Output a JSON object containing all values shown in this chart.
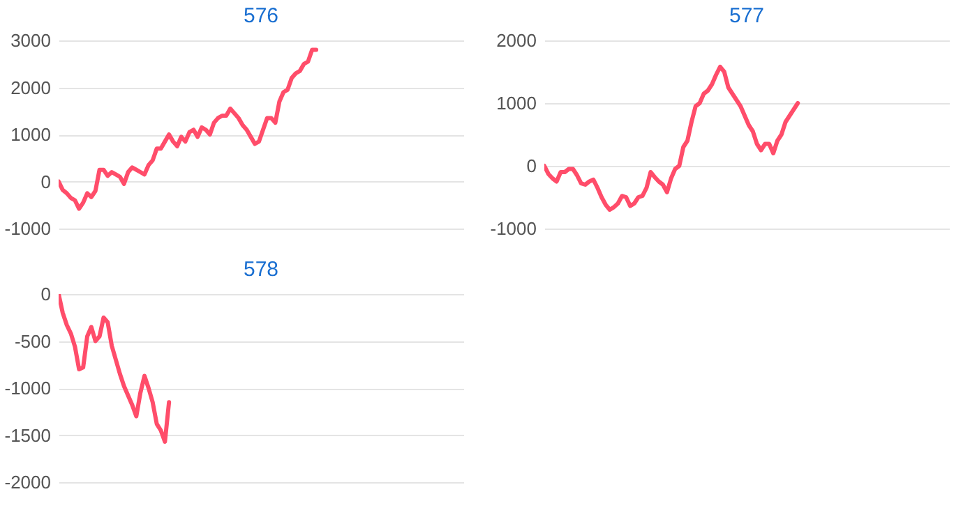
{
  "chart_data": [
    {
      "type": "line",
      "title": "576",
      "categories": [
        null,
        null,
        null,
        null,
        null,
        null,
        null,
        null,
        null,
        null,
        null,
        null,
        null,
        null,
        null,
        null,
        null,
        null,
        null,
        null,
        null,
        null,
        null,
        null,
        null,
        null,
        null,
        null,
        null,
        null,
        null,
        null,
        null,
        null,
        null,
        null,
        null,
        null,
        null,
        null,
        null,
        null,
        null,
        null,
        null,
        null,
        null,
        null,
        null,
        null,
        null,
        null,
        null,
        null,
        null,
        null,
        null,
        null,
        null,
        null,
        null,
        null,
        null,
        null,
        null,
        null,
        null,
        null,
        null,
        null,
        null,
        null,
        null,
        null,
        null,
        null,
        null,
        null,
        null,
        null,
        null,
        null,
        null,
        null,
        null,
        null,
        null,
        null,
        null,
        null,
        null,
        null,
        null,
        null,
        null,
        null,
        null,
        null,
        null,
        null
      ],
      "series": [
        {
          "color": "#ff4d6a",
          "values": [
            0,
            -180,
            -250,
            -350,
            -400,
            -580,
            -450,
            -250,
            -330,
            -200,
            250,
            250,
            120,
            200,
            150,
            100,
            -50,
            200,
            300,
            250,
            200,
            150,
            350,
            450,
            700,
            700,
            850,
            1000,
            850,
            750,
            950,
            850,
            1050,
            1100,
            950,
            1150,
            1100,
            1000,
            1250,
            1350,
            1400,
            1400,
            1550,
            1450,
            1350,
            1200,
            1100,
            950,
            800,
            850,
            1100,
            1350,
            1350,
            1250,
            1700,
            1900,
            1950,
            2200,
            2300,
            2350,
            2500,
            2550,
            2800,
            2800,
            null,
            null,
            null,
            null,
            null,
            null,
            null,
            null,
            null,
            null,
            null,
            null,
            null,
            null,
            null,
            null,
            null,
            null,
            null,
            null,
            null,
            null,
            null,
            null,
            null,
            null,
            null,
            null,
            null,
            null,
            null,
            null,
            null,
            null,
            null,
            null
          ]
        }
      ],
      "ylim": [
        -1000,
        3000
      ],
      "yticks": [
        -1000,
        0,
        1000,
        2000,
        3000
      ],
      "grid": "y",
      "tick_labels": "y"
    },
    {
      "type": "line",
      "title": "577",
      "categories": [
        null,
        null,
        null,
        null,
        null,
        null,
        null,
        null,
        null,
        null,
        null,
        null,
        null,
        null,
        null,
        null,
        null,
        null,
        null,
        null,
        null,
        null,
        null,
        null,
        null,
        null,
        null,
        null,
        null,
        null,
        null,
        null,
        null,
        null,
        null,
        null,
        null,
        null,
        null,
        null,
        null,
        null,
        null,
        null,
        null,
        null,
        null,
        null,
        null,
        null,
        null,
        null,
        null,
        null,
        null,
        null,
        null,
        null,
        null,
        null,
        null,
        null,
        null,
        null,
        null,
        null,
        null,
        null,
        null,
        null,
        null,
        null,
        null,
        null,
        null,
        null,
        null,
        null,
        null,
        null,
        null,
        null,
        null,
        null,
        null,
        null,
        null,
        null,
        null,
        null,
        null,
        null,
        null,
        null,
        null,
        null,
        null,
        null,
        null,
        null
      ],
      "series": [
        {
          "color": "#ff4d6a",
          "values": [
            0,
            -130,
            -200,
            -250,
            -100,
            -100,
            -50,
            -50,
            -150,
            -280,
            -300,
            -250,
            -220,
            -350,
            -500,
            -620,
            -700,
            -660,
            -600,
            -480,
            -500,
            -640,
            -600,
            -500,
            -480,
            -350,
            -100,
            -180,
            -250,
            -300,
            -420,
            -200,
            -50,
            0,
            300,
            400,
            700,
            950,
            1000,
            1150,
            1200,
            1300,
            1450,
            1580,
            1500,
            1250,
            1150,
            1050,
            950,
            800,
            650,
            550,
            350,
            250,
            350,
            350,
            200,
            400,
            500,
            700,
            800,
            900,
            1000,
            null,
            null,
            null,
            null,
            null,
            null,
            null,
            null,
            null,
            null,
            null,
            null,
            null,
            null,
            null,
            null,
            null,
            null,
            null,
            null,
            null,
            null,
            null,
            null,
            null,
            null,
            null,
            null,
            null,
            null,
            null,
            null,
            null,
            null,
            null,
            null,
            null
          ]
        }
      ],
      "ylim": [
        -1000,
        2000
      ],
      "yticks": [
        -1000,
        0,
        1000,
        2000
      ],
      "grid": "y",
      "tick_labels": "y"
    },
    {
      "type": "line",
      "title": "578",
      "categories": [
        null,
        null,
        null,
        null,
        null,
        null,
        null,
        null,
        null,
        null,
        null,
        null,
        null,
        null,
        null,
        null,
        null,
        null,
        null,
        null,
        null,
        null,
        null,
        null,
        null,
        null,
        null,
        null,
        null,
        null,
        null,
        null,
        null,
        null,
        null,
        null,
        null,
        null,
        null,
        null,
        null,
        null,
        null,
        null,
        null,
        null,
        null,
        null,
        null,
        null,
        null,
        null,
        null,
        null,
        null,
        null,
        null,
        null,
        null,
        null,
        null,
        null,
        null,
        null,
        null,
        null,
        null,
        null,
        null,
        null,
        null,
        null,
        null,
        null,
        null,
        null,
        null,
        null,
        null,
        null,
        null,
        null,
        null,
        null,
        null,
        null,
        null,
        null,
        null,
        null,
        null,
        null,
        null,
        null,
        null,
        null,
        null,
        null,
        null,
        null
      ],
      "series": [
        {
          "color": "#ff4d6a",
          "values": [
            0,
            -200,
            -330,
            -420,
            -560,
            -800,
            -780,
            -450,
            -350,
            -500,
            -450,
            -250,
            -300,
            -550,
            -700,
            -850,
            -980,
            -1080,
            -1180,
            -1300,
            -1050,
            -870,
            -1000,
            -1150,
            -1380,
            -1450,
            -1570,
            -1150,
            null,
            null,
            null,
            null,
            null,
            null,
            null,
            null,
            null,
            null,
            null,
            null,
            null,
            null,
            null,
            null,
            null,
            null,
            null,
            null,
            null,
            null,
            null,
            null,
            null,
            null,
            null,
            null,
            null,
            null,
            null,
            null,
            null,
            null,
            null,
            null,
            null,
            null,
            null,
            null,
            null,
            null,
            null,
            null,
            null,
            null,
            null,
            null,
            null,
            null,
            null,
            null,
            null,
            null,
            null,
            null,
            null,
            null,
            null,
            null,
            null,
            null,
            null,
            null,
            null,
            null,
            null,
            null,
            null,
            null,
            null,
            null
          ]
        }
      ],
      "ylim": [
        -2000,
        0
      ],
      "yticks": [
        -2000,
        -1500,
        -1000,
        -500,
        0
      ],
      "grid": "y",
      "tick_labels": "y"
    }
  ]
}
